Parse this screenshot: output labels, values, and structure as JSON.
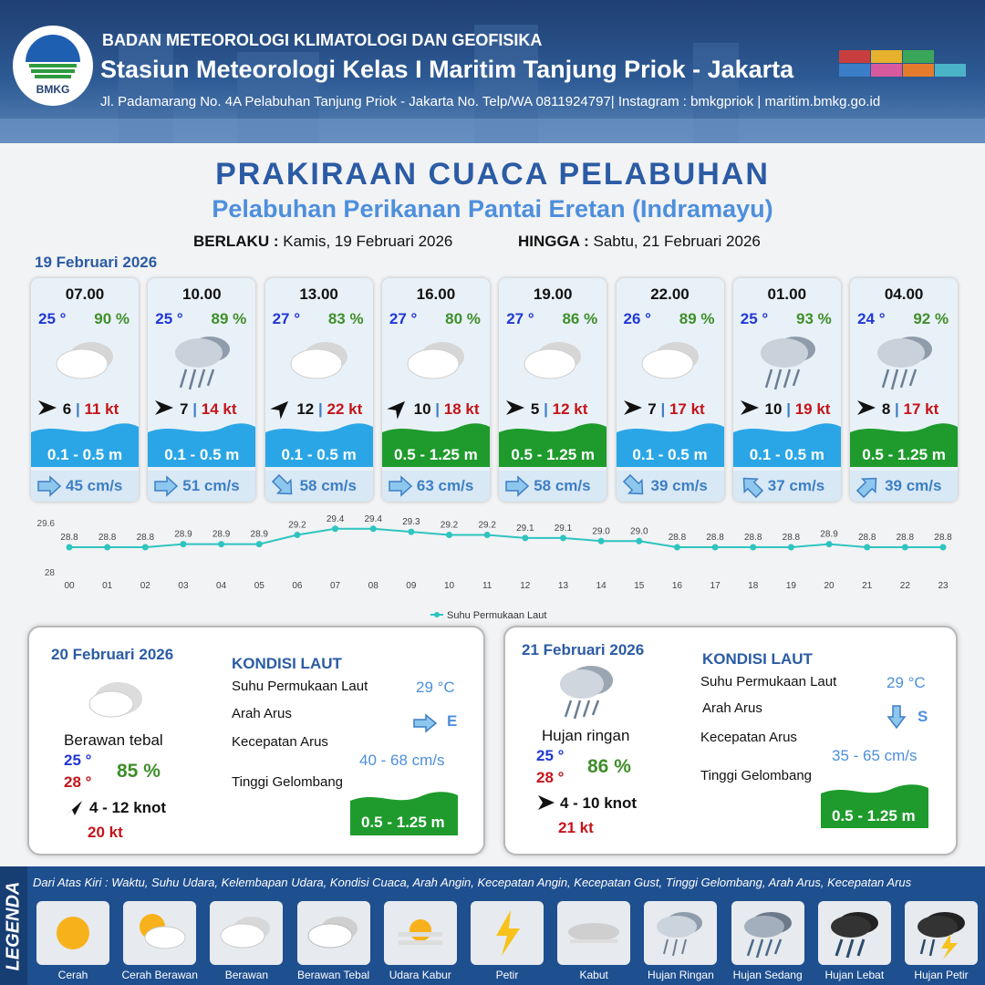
{
  "header": {
    "agency": "BADAN METEOROLOGI KLIMATOLOGI DAN GEOFISIKA",
    "station": "Stasiun Meteorologi Kelas I Maritim Tanjung Priok - Jakarta",
    "address": "Jl. Padamarang No. 4A Pelabuhan Tanjung Priok - Jakarta No. Telp/WA 0811924797| Instagram : bmkgpriok | maritim.bmkg.go.id",
    "logo_text": "BMKG"
  },
  "title": "PRAKIRAAN CUACA PELABUHAN",
  "subtitle": "Pelabuhan Perikanan Pantai Eretan (Indramayu)",
  "validity": {
    "from_label": "BERLAKU :",
    "from": "Kamis, 19 Februari 2026",
    "to_label": "HINGGA :",
    "to": "Sabtu, 21 Februari 2026"
  },
  "day1_label": "19 Februari 2026",
  "cards": [
    {
      "time": "07.00",
      "temp": "25 °",
      "hum": "90 %",
      "icon": "cloudy-icon",
      "wind": "6",
      "gust": "11 kt",
      "wave": "0.1 - 0.5 m",
      "wave_color": "#2aa6e6",
      "current": "45 cm/s",
      "wind_dir_deg": 0,
      "cur_dir_deg": 0
    },
    {
      "time": "10.00",
      "temp": "25 °",
      "hum": "89 %",
      "icon": "rain-icon",
      "wind": "7",
      "gust": "14 kt",
      "wave": "0.1 - 0.5 m",
      "wave_color": "#2aa6e6",
      "current": "51 cm/s",
      "wind_dir_deg": 0,
      "cur_dir_deg": 0
    },
    {
      "time": "13.00",
      "temp": "27 °",
      "hum": "83 %",
      "icon": "cloudy-icon",
      "wind": "12",
      "gust": "22 kt",
      "wave": "0.1 - 0.5 m",
      "wave_color": "#2aa6e6",
      "current": "58 cm/s",
      "wind_dir_deg": -45,
      "cur_dir_deg": 45
    },
    {
      "time": "16.00",
      "temp": "27 °",
      "hum": "80 %",
      "icon": "cloudy-icon",
      "wind": "10",
      "gust": "18 kt",
      "wave": "0.5 - 1.25 m",
      "wave_color": "#1e9b2c",
      "current": "63 cm/s",
      "wind_dir_deg": -45,
      "cur_dir_deg": 0
    },
    {
      "time": "19.00",
      "temp": "27 °",
      "hum": "86 %",
      "icon": "cloudy-icon",
      "wind": "5",
      "gust": "12 kt",
      "wave": "0.5 - 1.25 m",
      "wave_color": "#1e9b2c",
      "current": "58 cm/s",
      "wind_dir_deg": 0,
      "cur_dir_deg": 0
    },
    {
      "time": "22.00",
      "temp": "26 °",
      "hum": "89 %",
      "icon": "cloudy-icon",
      "wind": "7",
      "gust": "17 kt",
      "wave": "0.1 - 0.5 m",
      "wave_color": "#2aa6e6",
      "current": "39 cm/s",
      "wind_dir_deg": 0,
      "cur_dir_deg": 45
    },
    {
      "time": "01.00",
      "temp": "25 °",
      "hum": "93 %",
      "icon": "rain-icon",
      "wind": "10",
      "gust": "19 kt",
      "wave": "0.1 - 0.5 m",
      "wave_color": "#2aa6e6",
      "current": "37 cm/s",
      "wind_dir_deg": 0,
      "cur_dir_deg": -135
    },
    {
      "time": "04.00",
      "temp": "24 °",
      "hum": "92 %",
      "icon": "rain-icon",
      "wind": "8",
      "gust": "17 kt",
      "wave": "0.5 - 1.25 m",
      "wave_color": "#1e9b2c",
      "current": "39 cm/s",
      "wind_dir_deg": 0,
      "cur_dir_deg": -45
    }
  ],
  "chart_data": {
    "type": "line",
    "x": [
      "00",
      "01",
      "02",
      "03",
      "04",
      "05",
      "06",
      "07",
      "08",
      "09",
      "10",
      "11",
      "12",
      "13",
      "14",
      "15",
      "16",
      "17",
      "18",
      "19",
      "20",
      "21",
      "22",
      "23"
    ],
    "series": [
      {
        "name": "Suhu Permukaan Laut",
        "values": [
          28.8,
          28.8,
          28.8,
          28.9,
          28.9,
          28.9,
          29.2,
          29.4,
          29.4,
          29.3,
          29.2,
          29.2,
          29.1,
          29.1,
          29.0,
          29.0,
          28.8,
          28.8,
          28.8,
          28.8,
          28.9,
          28.8,
          28.8,
          28.8
        ],
        "color": "#2ec4c0"
      }
    ],
    "ylim": [
      28,
      29.6
    ],
    "yticks": [
      "28",
      "29.6"
    ],
    "legend": "bottom"
  },
  "day2": {
    "date": "20 Februari 2026",
    "weather": "Berawan tebal",
    "tmin": "25 °",
    "tmax": "28 °",
    "hum": "85 %",
    "wind": "4  - 12 knot",
    "gust": "20 kt",
    "sea_title": "KONDISI LAUT",
    "sst_label": "Suhu Permukaan Laut",
    "sst": "29 °C",
    "dir_label": "Arah Arus",
    "dir": "E",
    "speed_label": "Kecepatan Arus",
    "speed": "40  - 68 cm/s",
    "wave_label": "Tinggi Gelombang",
    "wave": "0.5 - 1.25 m"
  },
  "day3": {
    "date": "21 Februari 2026",
    "weather": "Hujan ringan",
    "tmin": "25 °",
    "tmax": "28 °",
    "hum": "86 %",
    "wind": "4  - 10 knot",
    "gust": "21 kt",
    "sea_title": "KONDISI LAUT",
    "sst_label": "Suhu Permukaan Laut",
    "sst": "29 °C",
    "dir_label": "Arah Arus",
    "dir": "S",
    "speed_label": "Kecepatan Arus",
    "speed": "35 - 65 cm/s",
    "wave_label": "Tinggi Gelombang",
    "wave": "0.5 - 1.25 m"
  },
  "legend": {
    "title": "LEGENDA",
    "desc": "Dari Atas Kiri : Waktu, Suhu Udara, Kelembapan Udara, Kondisi Cuaca, Arah Angin, Kecepatan Angin, Kecepatan Gust, Tinggi Gelombang, Arah Arus, Kecepatan Arus",
    "items": [
      "Cerah",
      "Cerah Berawan",
      "Berawan",
      "Berawan Tebal",
      "Udara Kabur",
      "Petir",
      "Kabut",
      "Hujan Ringan",
      "Hujan Sedang",
      "Hujan Lebat",
      "Hujan Petir"
    ]
  },
  "colors": {
    "title": "#2b5ba4",
    "temp": "#2038d6",
    "hum": "#3f8f2a",
    "gust": "#c4141a",
    "wave_blue": "#2aa6e6",
    "wave_green": "#1e9b2c",
    "current": "#3d7fc4"
  }
}
